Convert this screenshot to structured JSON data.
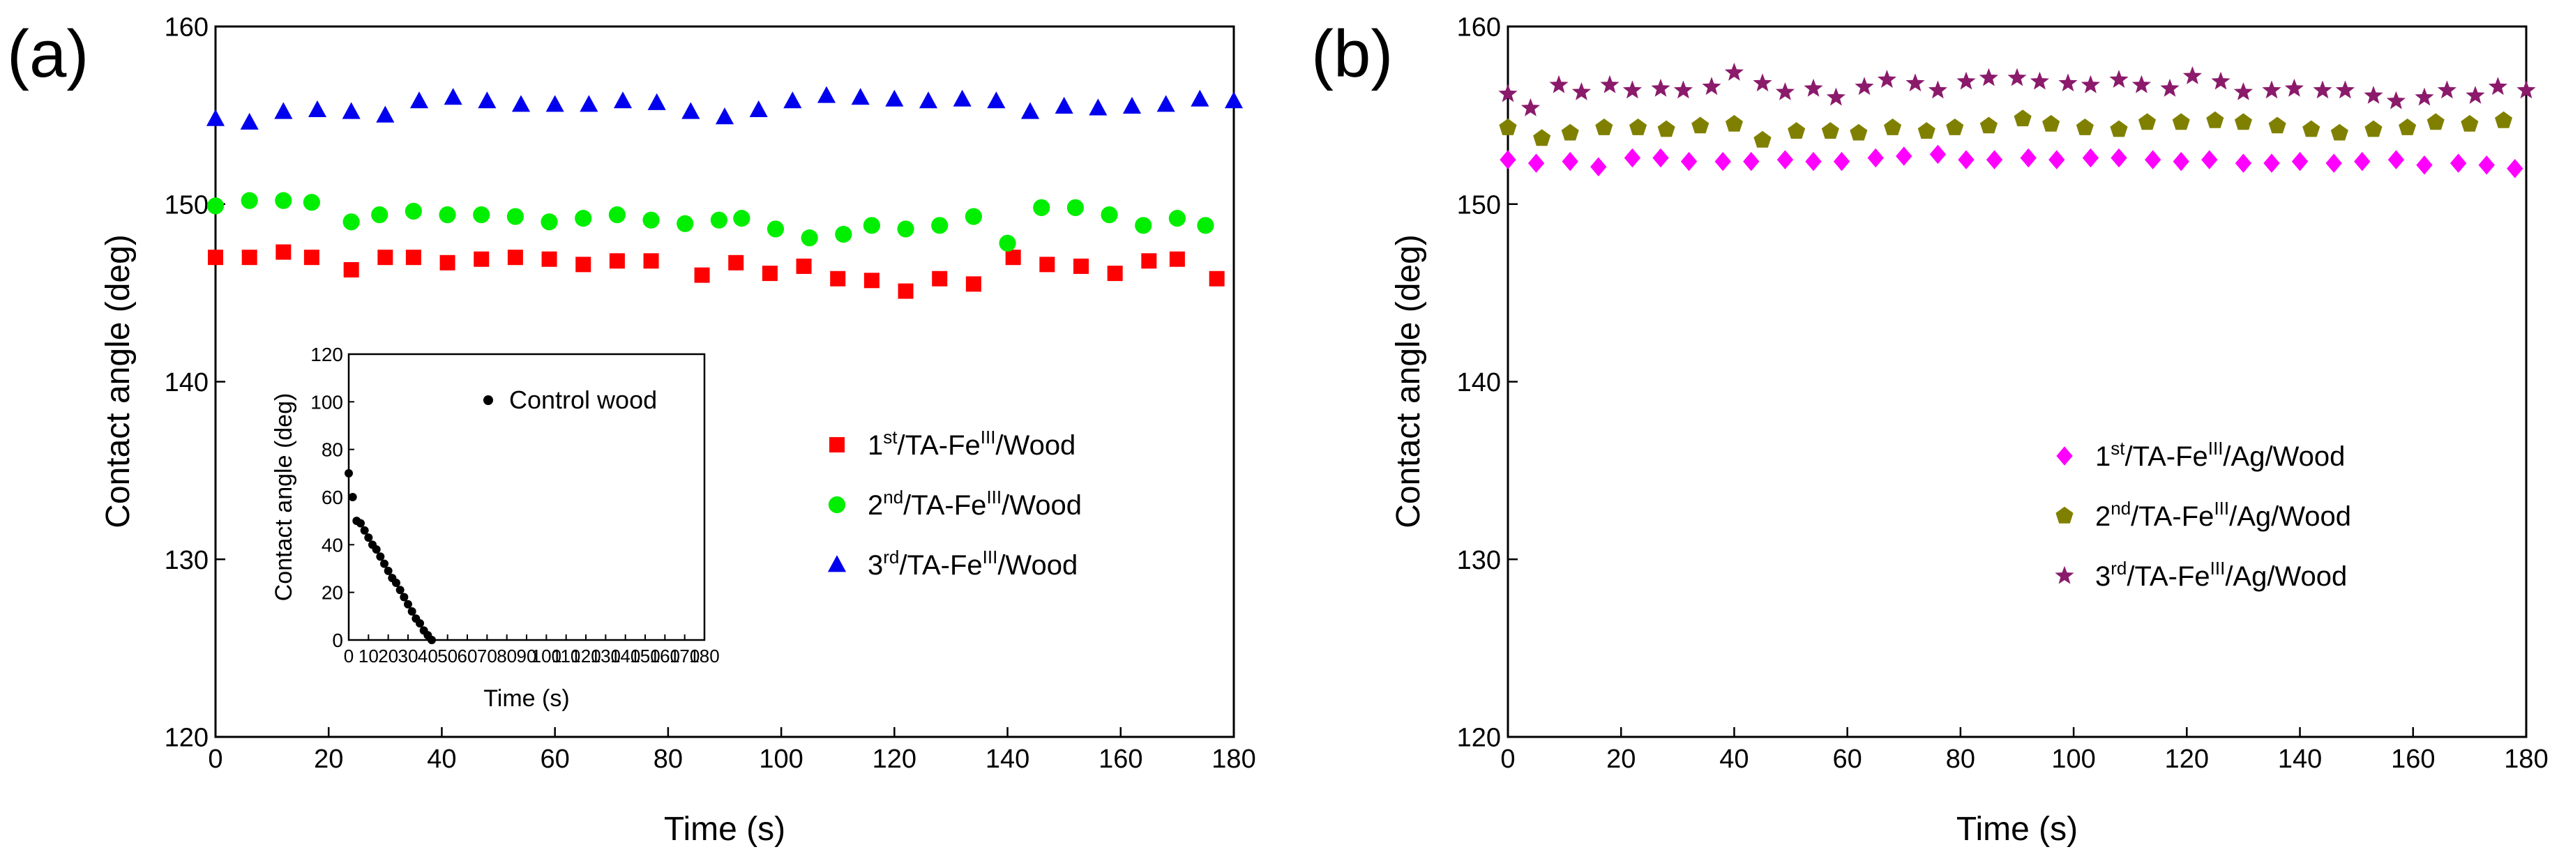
{
  "panels": [
    {
      "label": "(a)",
      "chart_data": {
        "type": "scatter",
        "xlabel": "Time (s)",
        "ylabel": "Contact angle (deg)",
        "xlim": [
          0,
          180
        ],
        "ylim": [
          120,
          160
        ],
        "xticks": [
          "0",
          "20",
          "40",
          "60",
          "80",
          "100",
          "120",
          "140",
          "160",
          "180"
        ],
        "yticks": [
          "120",
          "130",
          "140",
          "150",
          "160"
        ],
        "legend_position": "center-right",
        "series": [
          {
            "label_prefix": "1",
            "label_sup1": "st",
            "label_mid": "/TA-Fe",
            "label_sup2": "III",
            "label_suffix": "/Wood",
            "marker": "square",
            "color": "#ff0000",
            "x": [
              0,
              6,
              12,
              17,
              24,
              30,
              35,
              41,
              47,
              53,
              59,
              65,
              71,
              77,
              86,
              92,
              98,
              104,
              110,
              116,
              122,
              128,
              134,
              141,
              147,
              153,
              159,
              165,
              170,
              177
            ],
            "y": [
              147.0,
              147.0,
              147.3,
              147.0,
              146.3,
              147.0,
              147.0,
              146.7,
              146.9,
              147.0,
              146.9,
              146.6,
              146.8,
              146.8,
              146.0,
              146.7,
              146.1,
              146.5,
              145.8,
              145.7,
              145.1,
              145.8,
              145.5,
              147.0,
              146.6,
              146.5,
              146.1,
              146.8,
              146.9,
              145.8
            ]
          },
          {
            "label_prefix": "2",
            "label_sup1": "nd",
            "label_mid": "/TA-Fe",
            "label_sup2": "III",
            "label_suffix": "/Wood",
            "marker": "circle",
            "color": "#00ee00",
            "x": [
              0,
              6,
              12,
              17,
              24,
              29,
              35,
              41,
              47,
              53,
              59,
              65,
              71,
              77,
              83,
              89,
              93,
              99,
              105,
              111,
              116,
              122,
              128,
              134,
              140,
              146,
              152,
              158,
              164,
              170,
              175
            ],
            "y": [
              149.9,
              150.2,
              150.2,
              150.1,
              149.0,
              149.4,
              149.6,
              149.4,
              149.4,
              149.3,
              149.0,
              149.2,
              149.4,
              149.1,
              148.9,
              149.1,
              149.2,
              148.6,
              148.1,
              148.3,
              148.8,
              148.6,
              148.8,
              149.3,
              147.8,
              149.8,
              149.8,
              149.4,
              148.8,
              149.2,
              148.8
            ]
          },
          {
            "label_prefix": "3",
            "label_sup1": "rd",
            "label_mid": "/TA-Fe",
            "label_sup2": "III",
            "label_suffix": "/Wood",
            "marker": "triangle",
            "color": "#0000ee",
            "x": [
              0,
              6,
              12,
              18,
              24,
              30,
              36,
              42,
              48,
              54,
              60,
              66,
              72,
              78,
              84,
              90,
              96,
              102,
              108,
              114,
              120,
              126,
              132,
              138,
              144,
              150,
              156,
              162,
              168,
              174,
              180
            ],
            "y": [
              154.8,
              154.6,
              155.2,
              155.3,
              155.2,
              155.0,
              155.8,
              156.0,
              155.8,
              155.6,
              155.6,
              155.6,
              155.8,
              155.7,
              155.2,
              154.9,
              155.3,
              155.8,
              156.1,
              156.0,
              155.9,
              155.8,
              155.9,
              155.8,
              155.2,
              155.5,
              155.4,
              155.5,
              155.6,
              155.9,
              155.8
            ]
          }
        ],
        "inset": {
          "xlabel": "Time (s)",
          "ylabel": "Contact angle (deg)",
          "xlim": [
            0,
            180
          ],
          "ylim": [
            0,
            120
          ],
          "xticks": [
            "0",
            "10",
            "20",
            "30",
            "40",
            "50",
            "60",
            "70",
            "80",
            "90",
            "100",
            "110",
            "120",
            "130",
            "140",
            "150",
            "160",
            "170",
            "180"
          ],
          "yticks": [
            "0",
            "20",
            "40",
            "60",
            "80",
            "100",
            "120"
          ],
          "series_name": "Control wood",
          "color": "#000000",
          "x": [
            0,
            2,
            4,
            6,
            8,
            10,
            12,
            14,
            16,
            18,
            20,
            22,
            24,
            26,
            28,
            30,
            32,
            34,
            36,
            38,
            40,
            42
          ],
          "y": [
            70,
            60,
            50,
            49,
            46,
            43,
            40,
            38,
            35,
            32,
            29,
            26,
            24,
            21,
            18,
            15,
            12,
            9,
            7,
            4,
            2,
            0
          ]
        }
      }
    },
    {
      "label": "(b)",
      "chart_data": {
        "type": "scatter",
        "xlabel": "Time (s)",
        "ylabel": "Contact angle (deg)",
        "xlim": [
          0,
          180
        ],
        "ylim": [
          120,
          160
        ],
        "xticks": [
          "0",
          "20",
          "40",
          "60",
          "80",
          "100",
          "120",
          "140",
          "160",
          "180"
        ],
        "yticks": [
          "120",
          "130",
          "140",
          "150",
          "160"
        ],
        "legend_position": "center-right",
        "series": [
          {
            "label_prefix": "1",
            "label_sup1": "st",
            "label_mid": "/TA-Fe",
            "label_sup2": "III",
            "label_suffix": "/Ag/Wood",
            "marker": "diamond",
            "color": "#ff00ff",
            "x": [
              0,
              5,
              11,
              16,
              22,
              27,
              32,
              38,
              43,
              49,
              54,
              59,
              65,
              70,
              76,
              81,
              86,
              92,
              97,
              103,
              108,
              114,
              119,
              124,
              130,
              135,
              140,
              146,
              151,
              157,
              162,
              168,
              173,
              178
            ],
            "y": [
              152.5,
              152.3,
              152.4,
              152.1,
              152.6,
              152.6,
              152.4,
              152.4,
              152.4,
              152.5,
              152.4,
              152.4,
              152.6,
              152.7,
              152.8,
              152.5,
              152.5,
              152.6,
              152.5,
              152.6,
              152.6,
              152.5,
              152.4,
              152.5,
              152.3,
              152.3,
              152.4,
              152.3,
              152.4,
              152.5,
              152.2,
              152.3,
              152.2,
              152.0
            ]
          },
          {
            "label_prefix": "2",
            "label_sup1": "nd",
            "label_mid": "/TA-Fe",
            "label_sup2": "III",
            "label_suffix": "/Ag/Wood",
            "marker": "pentagon",
            "color": "#808000",
            "x": [
              0,
              6,
              11,
              17,
              23,
              28,
              34,
              40,
              45,
              51,
              57,
              62,
              68,
              74,
              79,
              85,
              91,
              96,
              102,
              108,
              113,
              119,
              125,
              130,
              136,
              142,
              147,
              153,
              159,
              164,
              170,
              176
            ],
            "y": [
              154.3,
              153.7,
              154.0,
              154.3,
              154.3,
              154.2,
              154.4,
              154.5,
              153.6,
              154.1,
              154.1,
              154.0,
              154.3,
              154.1,
              154.3,
              154.4,
              154.8,
              154.5,
              154.3,
              154.2,
              154.6,
              154.6,
              154.7,
              154.6,
              154.4,
              154.2,
              154.0,
              154.2,
              154.3,
              154.6,
              154.5,
              154.7
            ]
          },
          {
            "label_prefix": "3",
            "label_sup1": "rd",
            "label_mid": "/TA-Fe",
            "label_sup2": "III",
            "label_suffix": "/Ag/Wood",
            "marker": "star",
            "color": "#8b1a6b",
            "x": [
              0,
              4,
              9,
              13,
              18,
              22,
              27,
              31,
              36,
              40,
              45,
              49,
              54,
              58,
              63,
              67,
              72,
              76,
              81,
              85,
              90,
              94,
              99,
              103,
              108,
              112,
              117,
              121,
              126,
              130,
              135,
              139,
              144,
              148,
              153,
              157,
              162,
              166,
              171,
              175,
              180
            ],
            "y": [
              156.2,
              155.4,
              156.7,
              156.3,
              156.7,
              156.4,
              156.5,
              156.4,
              156.6,
              157.4,
              156.8,
              156.3,
              156.5,
              156.0,
              156.6,
              157.0,
              156.8,
              156.4,
              156.9,
              157.1,
              157.1,
              156.9,
              156.8,
              156.7,
              157.0,
              156.7,
              156.5,
              157.2,
              156.9,
              156.3,
              156.4,
              156.5,
              156.4,
              156.4,
              156.1,
              155.8,
              156.0,
              156.4,
              156.1,
              156.6,
              156.4
            ]
          }
        ]
      }
    }
  ]
}
